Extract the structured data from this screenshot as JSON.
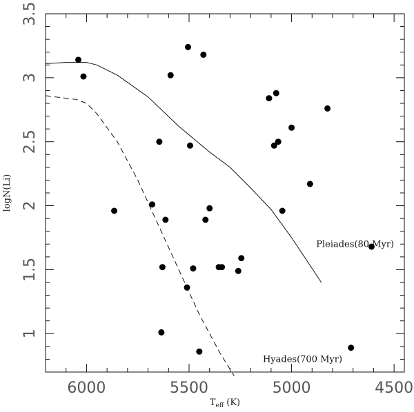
{
  "chart_data": {
    "type": "scatter",
    "xlabel": "T",
    "xlabel_sub": "eff",
    "xlabel_unit": "(K)",
    "ylabel": "logN(Li)",
    "xlim": [
      6200,
      4450
    ],
    "ylim": [
      0.7,
      3.5
    ],
    "x_inverted": true,
    "xticks": [
      6000,
      5500,
      5000,
      4500
    ],
    "yticks": [
      1,
      1.5,
      2,
      2.5,
      3,
      3.5
    ],
    "grid": false,
    "points": [
      {
        "x": 6040,
        "y": 3.14
      },
      {
        "x": 6015,
        "y": 3.01
      },
      {
        "x": 5865,
        "y": 1.96
      },
      {
        "x": 5680,
        "y": 2.01
      },
      {
        "x": 5645,
        "y": 2.5
      },
      {
        "x": 5635,
        "y": 1.01
      },
      {
        "x": 5630,
        "y": 1.52
      },
      {
        "x": 5615,
        "y": 1.89
      },
      {
        "x": 5590,
        "y": 3.02
      },
      {
        "x": 5510,
        "y": 1.36
      },
      {
        "x": 5505,
        "y": 3.24
      },
      {
        "x": 5495,
        "y": 2.47
      },
      {
        "x": 5480,
        "y": 1.51
      },
      {
        "x": 5450,
        "y": 0.86
      },
      {
        "x": 5430,
        "y": 3.18
      },
      {
        "x": 5420,
        "y": 1.89
      },
      {
        "x": 5400,
        "y": 1.98
      },
      {
        "x": 5355,
        "y": 1.52
      },
      {
        "x": 5340,
        "y": 1.52
      },
      {
        "x": 5260,
        "y": 1.49
      },
      {
        "x": 5245,
        "y": 1.59
      },
      {
        "x": 5110,
        "y": 2.84
      },
      {
        "x": 5085,
        "y": 2.47
      },
      {
        "x": 5075,
        "y": 2.88
      },
      {
        "x": 5065,
        "y": 2.5
      },
      {
        "x": 5045,
        "y": 1.96
      },
      {
        "x": 5000,
        "y": 2.61
      },
      {
        "x": 4910,
        "y": 2.17
      },
      {
        "x": 4825,
        "y": 2.76
      },
      {
        "x": 4710,
        "y": 0.89
      },
      {
        "x": 4610,
        "y": 1.68
      }
    ],
    "curves": [
      {
        "name": "Pleiades",
        "style": "solid",
        "x": [
          6200,
          6100,
          6000,
          5950,
          5850,
          5700,
          5550,
          5400,
          5300,
          5200,
          5100,
          5000,
          4900,
          4855
        ],
        "y": [
          3.11,
          3.12,
          3.12,
          3.1,
          3.02,
          2.85,
          2.62,
          2.42,
          2.3,
          2.14,
          1.97,
          1.75,
          1.51,
          1.4
        ]
      },
      {
        "name": "Hyades",
        "style": "dashed",
        "x": [
          6200,
          6100,
          6050,
          6000,
          5950,
          5850,
          5750,
          5650,
          5550,
          5450,
          5350,
          5280
        ],
        "y": [
          2.86,
          2.84,
          2.83,
          2.8,
          2.72,
          2.5,
          2.2,
          1.85,
          1.5,
          1.15,
          0.85,
          0.67
        ]
      }
    ],
    "annotations": [
      {
        "text": "Pleiades(80 Myr)",
        "x": 4880,
        "y": 1.7
      },
      {
        "text": "Hyades(700 Myr)",
        "x": 5140,
        "y": 0.8
      }
    ]
  }
}
